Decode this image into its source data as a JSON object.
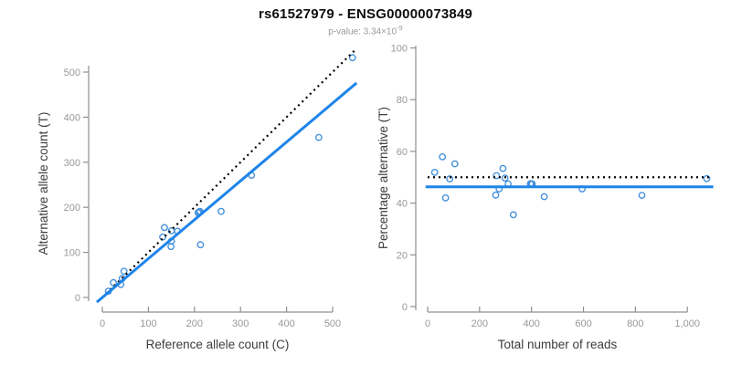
{
  "header": {
    "title": "rs61527979 - ENSG00000073849",
    "pvalue_prefix": "p-value: 3.34×10",
    "pvalue_exponent": "-9"
  },
  "colors": {
    "identity": "#000000",
    "fit": "#1e84e8",
    "point": "#4690dc",
    "axis": "#8d9093",
    "tick_text": "#97999b",
    "label_text": "#3a3c3e",
    "title_text": "#0d0d0d",
    "subtitle_text": "#97999b"
  },
  "chart_data": [
    {
      "type": "scatter",
      "xlabel": "Reference allele count (C)",
      "ylabel": "Alternative allele count (T)",
      "xlim": [
        0,
        555
      ],
      "ylim": [
        0,
        545
      ],
      "xticks": [
        0,
        100,
        200,
        300,
        400,
        500
      ],
      "xtick_labels": [
        "0",
        "100",
        "200",
        "300",
        "400",
        "500"
      ],
      "yticks": [
        0,
        100,
        200,
        300,
        400,
        500
      ],
      "ytick_labels": [
        "0",
        "100",
        "200",
        "300",
        "400",
        "500"
      ],
      "grid": false,
      "points": [
        [
          13,
          14
        ],
        [
          24,
          33
        ],
        [
          40,
          29
        ],
        [
          43,
          42
        ],
        [
          47,
          58
        ],
        [
          131,
          134
        ],
        [
          135,
          155
        ],
        [
          149,
          113
        ],
        [
          150,
          125
        ],
        [
          150,
          148
        ],
        [
          163,
          147
        ],
        [
          213,
          117
        ],
        [
          208,
          188
        ],
        [
          210,
          190
        ],
        [
          212,
          191
        ],
        [
          258,
          191
        ],
        [
          324,
          271
        ],
        [
          470,
          355
        ],
        [
          543,
          532
        ]
      ],
      "lines": [
        {
          "name": "identity-50-percent",
          "slope": 1,
          "intercept": 0,
          "dash": "dotted",
          "color_key": "identity",
          "x_range": [
            0,
            549
          ]
        },
        {
          "name": "fit-46-percent",
          "slope": 0.862,
          "intercept": 0,
          "dash": "solid",
          "color_key": "fit",
          "x_range": [
            -12,
            552
          ]
        }
      ]
    },
    {
      "type": "scatter",
      "xlabel": "Total number of reads",
      "ylabel": "Percentage alternative (T)",
      "xlim": [
        0,
        1100
      ],
      "ylim": [
        0,
        100
      ],
      "xticks": [
        0,
        200,
        400,
        600,
        800,
        1000
      ],
      "xtick_labels": [
        "0",
        "200",
        "400",
        "600",
        "800",
        "1,000"
      ],
      "yticks": [
        0,
        20,
        40,
        60,
        80,
        100
      ],
      "ytick_labels": [
        "0",
        "20",
        "40",
        "60",
        "80",
        "100"
      ],
      "grid": false,
      "points": [
        [
          27,
          51.9
        ],
        [
          57,
          57.9
        ],
        [
          69,
          42.0
        ],
        [
          85,
          49.4
        ],
        [
          105,
          55.2
        ],
        [
          262,
          43.1
        ],
        [
          265,
          50.6
        ],
        [
          275,
          45.5
        ],
        [
          290,
          53.4
        ],
        [
          298,
          49.7
        ],
        [
          310,
          47.4
        ],
        [
          330,
          35.5
        ],
        [
          396,
          47.5
        ],
        [
          400,
          47.5
        ],
        [
          403,
          47.4
        ],
        [
          449,
          42.5
        ],
        [
          595,
          45.5
        ],
        [
          825,
          43.0
        ],
        [
          1075,
          49.5
        ]
      ],
      "lines": [
        {
          "name": "expected-50-percent",
          "slope": 0,
          "intercept": 50,
          "dash": "dotted",
          "color_key": "identity",
          "x_range": [
            0,
            1085
          ]
        },
        {
          "name": "fit-46-percent",
          "slope": 0,
          "intercept": 46.3,
          "dash": "solid",
          "color_key": "fit",
          "x_range": [
            -8,
            1100
          ]
        }
      ]
    }
  ]
}
